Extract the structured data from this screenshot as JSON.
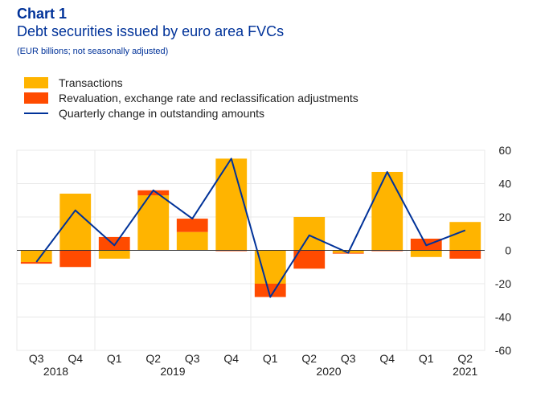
{
  "header": {
    "chart_number": "Chart 1",
    "title": "Debt securities issued by euro area FVCs",
    "subtitle": "(EUR billions; not seasonally adjusted)"
  },
  "chart_data": {
    "type": "bar",
    "title": "Debt securities issued by euro area FVCs",
    "subtitle": "(EUR billions; not seasonally adjusted)",
    "categories": [
      "Q3",
      "Q4",
      "Q1",
      "Q2",
      "Q3",
      "Q4",
      "Q1",
      "Q2",
      "Q3",
      "Q4",
      "Q1",
      "Q2"
    ],
    "years": [
      {
        "label": "2018",
        "span": [
          0,
          1
        ]
      },
      {
        "label": "2019",
        "span": [
          2,
          5
        ]
      },
      {
        "label": "2020",
        "span": [
          6,
          9
        ]
      },
      {
        "label": "2021",
        "span": [
          10,
          11
        ]
      }
    ],
    "series": [
      {
        "name": "Transactions",
        "kind": "bar",
        "color": "#FFB400",
        "values": [
          -7,
          34,
          -5,
          33,
          11,
          55,
          -20,
          20,
          -1.5,
          47,
          -4,
          17
        ]
      },
      {
        "name": "Revaluation, exchange rate and reclassification adjustments",
        "kind": "bar",
        "color": "#FF4B00",
        "values": [
          -1,
          -10,
          8,
          3,
          8,
          -0.5,
          -8,
          -11,
          -0.5,
          -0.5,
          7,
          -5
        ]
      },
      {
        "name": "Quarterly change in outstanding amounts",
        "kind": "line",
        "color": "#003299",
        "values": [
          -7,
          24,
          3,
          36,
          19,
          55,
          -28,
          9,
          -1.5,
          47,
          3,
          12
        ]
      }
    ],
    "ylim": [
      -60,
      60
    ],
    "yticks": [
      60,
      40,
      20,
      0,
      -20,
      -40,
      -60
    ],
    "y_axis_side": "right",
    "grid": true,
    "legend_position": "top-left"
  }
}
